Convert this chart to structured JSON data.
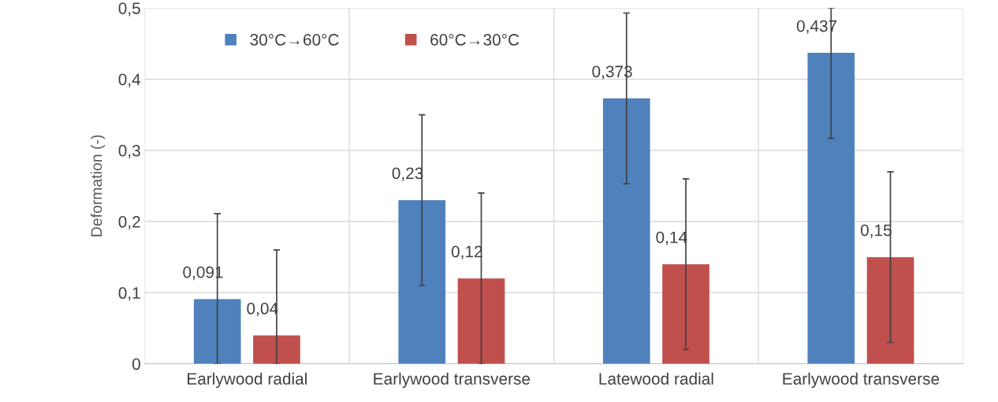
{
  "chart_data": {
    "type": "bar",
    "ylabel": "Deformation (-)",
    "categories": [
      "Earlywood radial",
      "Earlywood transverse",
      "Latewood radial",
      "Earlywood transverse"
    ],
    "series": [
      {
        "name": "30°C→60°C",
        "color": "#4f81bd",
        "values": [
          0.091,
          0.23,
          0.373,
          0.437
        ],
        "errors": [
          [
            0,
            0.211
          ],
          [
            0.11,
            0.35
          ],
          [
            0.253,
            0.493
          ],
          [
            0.317,
            0.5
          ]
        ]
      },
      {
        "name": "60°C→30°C",
        "color": "#c0504d",
        "values": [
          0.04,
          0.12,
          0.14,
          0.15
        ],
        "errors": [
          [
            0,
            0.16
          ],
          [
            0,
            0.24
          ],
          [
            0.02,
            0.26
          ],
          [
            0.03,
            0.27
          ]
        ]
      }
    ],
    "ylim": [
      0,
      0.5
    ],
    "yticks": [
      {
        "value": 0,
        "label": "0"
      },
      {
        "value": 0.1,
        "label": "0,1"
      },
      {
        "value": 0.2,
        "label": "0,2"
      },
      {
        "value": 0.3,
        "label": "0,3"
      },
      {
        "value": 0.4,
        "label": "0,4"
      },
      {
        "value": 0.5,
        "label": "0,5"
      }
    ],
    "value_labels": [
      [
        "0,091",
        "0,23",
        "0,373",
        "0,437"
      ],
      [
        "0,04",
        "0,12",
        "0,14",
        "0,15"
      ]
    ],
    "grid": true,
    "legend": "top left"
  }
}
